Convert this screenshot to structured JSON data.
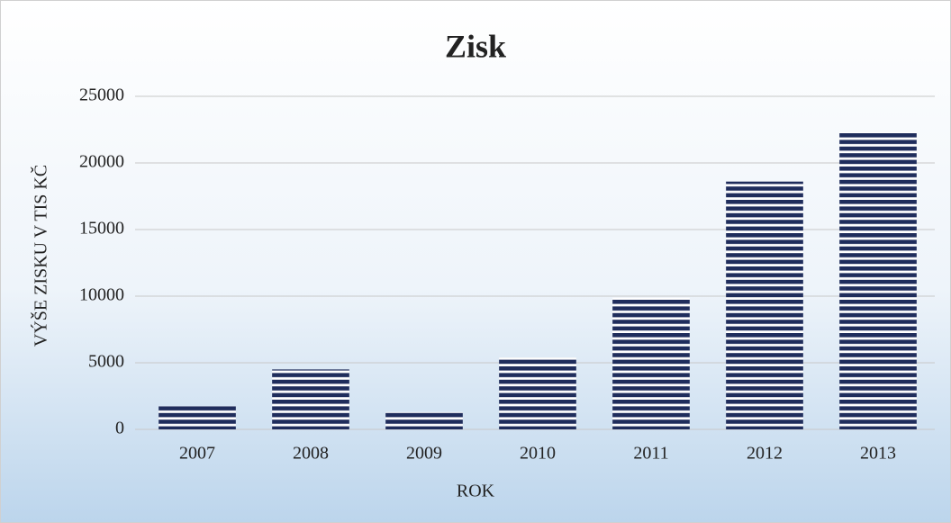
{
  "chart_data": {
    "type": "bar",
    "title": "Zisk",
    "x_label": "ROK",
    "y_label": "VÝŠE ZISKU V TIS KČ",
    "categories": [
      "2007",
      "2008",
      "2009",
      "2010",
      "2011",
      "2012",
      "2013"
    ],
    "values": [
      1750,
      4500,
      1300,
      5400,
      9900,
      18600,
      22300
    ],
    "color": "#1f2d5c",
    "ylim": [
      0,
      25000
    ],
    "yticks": [
      0,
      5000,
      10000,
      15000,
      20000,
      25000
    ],
    "grid": true
  }
}
